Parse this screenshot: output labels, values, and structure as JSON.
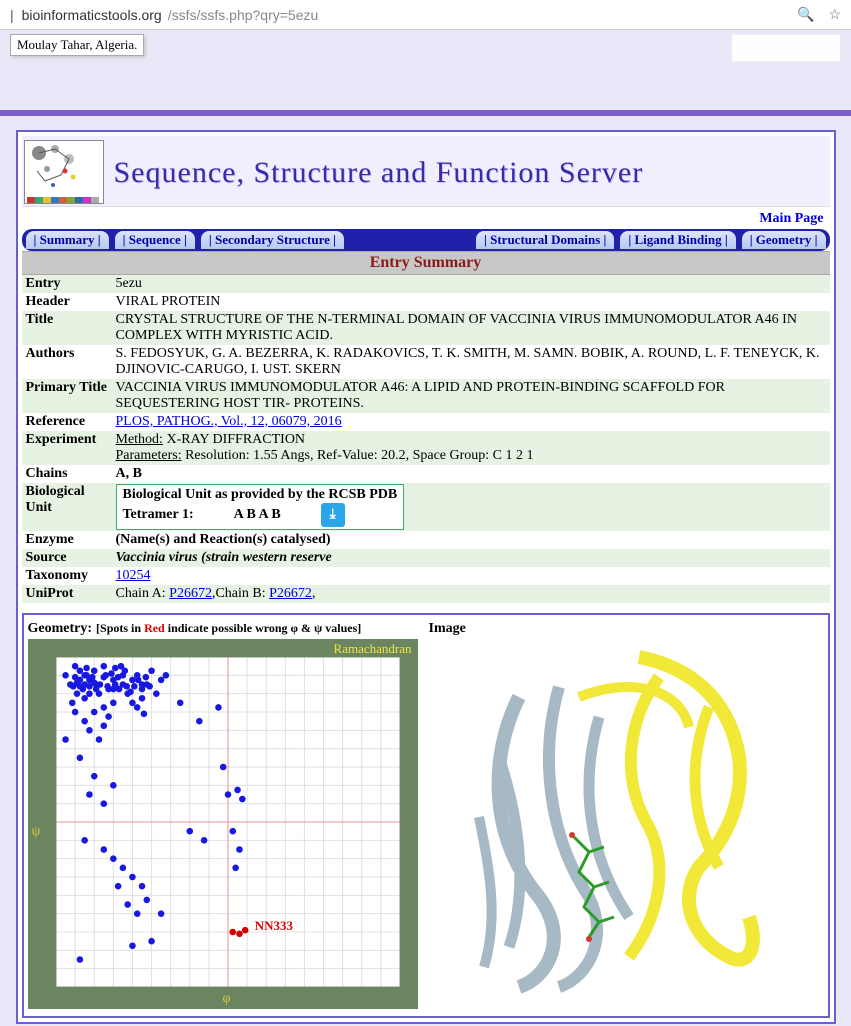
{
  "browser": {
    "host": "bioinformaticstools.org",
    "path": "/ssfs/ssfs.php?qry=5ezu"
  },
  "affiliation": "Moulay Tahar, Algeria.",
  "banner_title": "Sequence, Structure and Function Server",
  "main_page_label": "Main Page",
  "tabs": {
    "summary": "| Summary |",
    "sequence": "| Sequence |",
    "secondary": "| Secondary Structure |",
    "domains": "| Structural Domains |",
    "ligand": "| Ligand Binding |",
    "geometry": "| Geometry |"
  },
  "section_header": "Entry Summary",
  "rows": {
    "entry": {
      "k": "Entry",
      "v": "5ezu"
    },
    "header": {
      "k": "Header",
      "v": "VIRAL PROTEIN"
    },
    "title": {
      "k": "Title",
      "v": "CRYSTAL STRUCTURE OF THE N-TERMINAL DOMAIN OF VACCINIA VIRUS IMMUNOMODULATOR A46 IN COMPLEX WITH MYRISTIC ACID."
    },
    "authors": {
      "k": "Authors",
      "v": "S. FEDOSYUK, G. A. BEZERRA, K. RADAKOVICS, T. K. SMITH, M. SAMN. BOBIK, A. ROUND, L. F. TENEYCK, K. DJINOVIC-CARUGO, I. UST. SKERN"
    },
    "ptitle": {
      "k": "Primary Title",
      "v": "VACCINIA VIRUS IMMUNOMODULATOR A46: A LIPID AND PROTEIN-BINDING SCAFFOLD FOR SEQUESTERING HOST TIR- PROTEINS."
    },
    "reference": {
      "k": "Reference",
      "v": "PLOS, PATHOG., Vol., 12, 06079, 2016"
    },
    "experiment": {
      "k": "Experiment",
      "method_label": "Method:",
      "method": " X-RAY DIFFRACTION",
      "params_label": "Parameters:",
      "params": " Resolution: 1.55 Angs, Ref-Value: 20.2, Space Group: C 1 2 1"
    },
    "chains": {
      "k": "Chains",
      "v": "A, B"
    },
    "biounit": {
      "k": "Biological Unit",
      "title": "Biological Unit as provided by the RCSB PDB",
      "tetramer_label": "Tetramer 1:",
      "tetramer_chains": "A B A B"
    },
    "enzyme": {
      "k": "Enzyme",
      "v": "(Name(s) and Reaction(s) catalysed)"
    },
    "source": {
      "k": "Source",
      "v": "Vaccinia virus (strain western reserve"
    },
    "taxonomy": {
      "k": "Taxonomy",
      "v": "10254"
    },
    "uniprot": {
      "k": "UniProt",
      "a_label": "Chain A: ",
      "a": "P26672",
      "sep": ",Chain B: ",
      "b": "P26672",
      "tail": ","
    }
  },
  "geometry_panel": {
    "title": "Geometry:",
    "subtitle_pre": "[Spots in ",
    "subtitle_red": "Red",
    "subtitle_post": " indicate possible wrong φ & ψ values]",
    "corner": "Ramachandran",
    "psi": "ψ",
    "phi": "φ",
    "outlier_label": "NN333",
    "plot": {
      "bg": "#6a855f",
      "plotbg": "#ffffff",
      "grid": "#e0e0e0",
      "axis": "#f4a6a6",
      "dot": "#1818e0",
      "dot_r": 3.3,
      "outlier": "#d00000",
      "xlim": [
        -180,
        180
      ],
      "ylim": [
        -180,
        180
      ],
      "points_allowed": [
        [
          -150,
          160
        ],
        [
          -145,
          155
        ],
        [
          -140,
          165
        ],
        [
          -138,
          150
        ],
        [
          -155,
          148
        ],
        [
          -160,
          158
        ],
        [
          -130,
          170
        ],
        [
          -128,
          160
        ],
        [
          -120,
          155
        ],
        [
          -118,
          168
        ],
        [
          -125,
          145
        ],
        [
          -135,
          140
        ],
        [
          -145,
          140
        ],
        [
          -150,
          135
        ],
        [
          -155,
          165
        ],
        [
          -160,
          170
        ],
        [
          -165,
          150
        ],
        [
          -170,
          160
        ],
        [
          -110,
          150
        ],
        [
          -108,
          165
        ],
        [
          -105,
          140
        ],
        [
          -100,
          155
        ],
        [
          -95,
          160
        ],
        [
          -90,
          150
        ],
        [
          -140,
          120
        ],
        [
          -130,
          125
        ],
        [
          -120,
          130
        ],
        [
          -150,
          110
        ],
        [
          -160,
          120
        ],
        [
          -145,
          100
        ],
        [
          -100,
          130
        ],
        [
          -95,
          125
        ],
        [
          -90,
          135
        ],
        [
          -85,
          150
        ],
        [
          -80,
          165
        ],
        [
          -75,
          140
        ],
        [
          -70,
          155
        ],
        [
          -65,
          160
        ],
        [
          -135,
          90
        ],
        [
          -130,
          105
        ],
        [
          -125,
          115
        ],
        [
          -120,
          145
        ],
        [
          -115,
          158
        ],
        [
          -112,
          170
        ],
        [
          -148,
          168
        ],
        [
          -158,
          140
        ],
        [
          -163,
          130
        ],
        [
          -88,
          118
        ],
        [
          -150,
          150
        ],
        [
          -155,
          155
        ],
        [
          -145,
          148
        ],
        [
          -140,
          152
        ],
        [
          -148,
          160
        ],
        [
          -152,
          145
        ],
        [
          -158,
          152
        ],
        [
          -162,
          148
        ],
        [
          -142,
          158
        ],
        [
          -138,
          145
        ],
        [
          -134,
          150
        ],
        [
          -130,
          158
        ],
        [
          -126,
          148
        ],
        [
          -122,
          162
        ],
        [
          -118,
          150
        ],
        [
          -114,
          145
        ],
        [
          -110,
          160
        ],
        [
          -106,
          148
        ],
        [
          -102,
          142
        ],
        [
          -98,
          148
        ],
        [
          -94,
          155
        ],
        [
          -90,
          145
        ],
        [
          -86,
          158
        ],
        [
          -82,
          148
        ],
        [
          -170,
          90
        ],
        [
          -155,
          70
        ],
        [
          -140,
          50
        ],
        [
          -120,
          40
        ],
        [
          -130,
          20
        ],
        [
          -145,
          30
        ],
        [
          -50,
          130
        ],
        [
          -30,
          110
        ],
        [
          -10,
          125
        ],
        [
          -5,
          60
        ],
        [
          0,
          30
        ],
        [
          -130,
          -30
        ],
        [
          -120,
          -40
        ],
        [
          -110,
          -50
        ],
        [
          -100,
          -60
        ],
        [
          -115,
          -70
        ],
        [
          -105,
          -90
        ],
        [
          -90,
          -70
        ],
        [
          -95,
          -100
        ],
        [
          -85,
          -85
        ],
        [
          -80,
          -130
        ],
        [
          -70,
          -100
        ],
        [
          -150,
          -20
        ],
        [
          -155,
          -150
        ],
        [
          -100,
          -135
        ],
        [
          -40,
          -10
        ],
        [
          -25,
          -20
        ],
        [
          10,
          35
        ],
        [
          15,
          25
        ],
        [
          5,
          -10
        ],
        [
          12,
          -30
        ],
        [
          8,
          -50
        ]
      ],
      "points_outlier": [
        [
          5,
          -120
        ],
        [
          12,
          -122
        ],
        [
          18,
          -118
        ]
      ]
    }
  },
  "image_panel": {
    "title": "Image"
  },
  "colors": {
    "ribbon_a": "#a6b9c4",
    "ribbon_b": "#f2e838",
    "ligand": "#2a9c2a",
    "lig_ox": "#d83a2a"
  }
}
